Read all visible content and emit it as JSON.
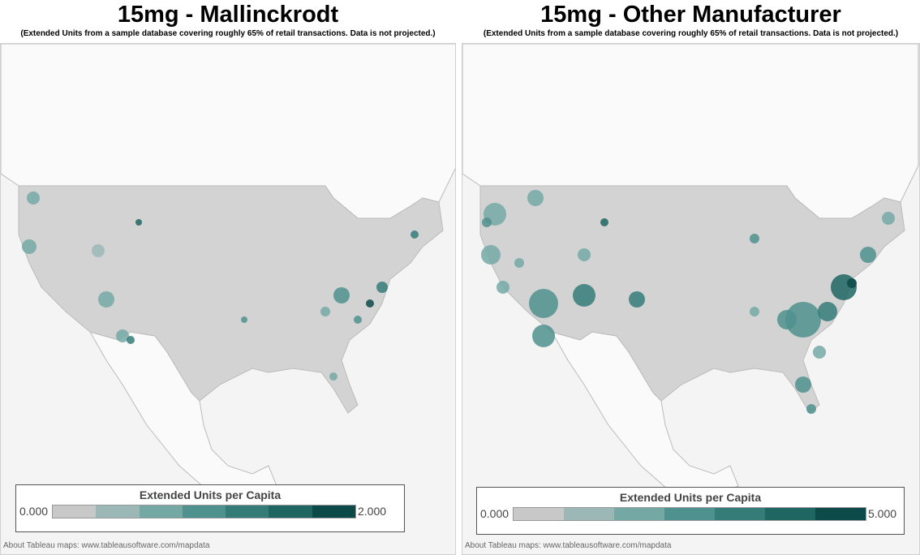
{
  "colors": {
    "ramp": [
      "#c8c8c8",
      "#9bb8b7",
      "#74a8a5",
      "#4f918e",
      "#357b78",
      "#1f6562",
      "#0b4a48"
    ],
    "land": "#d3d3d3",
    "water": "#f4f4f4"
  },
  "chart_data": [
    {
      "type": "heatmap",
      "title": "15mg - Mallinckrodt",
      "subtitle": "(Extended Units from a sample database covering roughly 65% of retail transactions. Data is not projected.)",
      "legend": {
        "title": "Extended Units per Capita",
        "min": "0.000",
        "max": "2.000",
        "range": [
          0,
          2
        ],
        "placement": "bottom"
      },
      "footer": "About Tableau maps: www.tableausoftware.com/mapdata"
    },
    {
      "type": "heatmap",
      "title": "15mg - Other Manufacturer",
      "subtitle": "(Extended Units from a sample database covering roughly 65% of retail transactions. Data is not projected.)",
      "legend": {
        "title": "Extended Units per Capita",
        "min": "0.000",
        "max": "5.000",
        "range": [
          0,
          5
        ],
        "placement": "bottom"
      },
      "footer": "About Tableau maps: www.tableausoftware.com/mapdata"
    }
  ]
}
